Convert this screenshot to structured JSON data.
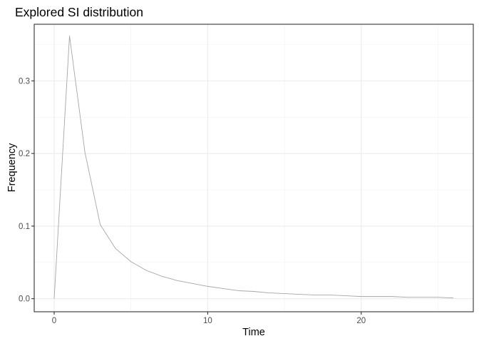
{
  "chart_data": {
    "type": "line",
    "title": "Explored SI distribution",
    "xlabel": "Time",
    "ylabel": "Frequency",
    "xlim": [
      -1.3,
      27.3
    ],
    "ylim": [
      -0.018,
      0.378
    ],
    "x_ticks": [
      0,
      10,
      20
    ],
    "y_ticks": [
      0.0,
      0.1,
      0.2,
      0.3
    ],
    "x_tick_labels": [
      "0",
      "10",
      "20"
    ],
    "y_tick_labels": [
      "0.0",
      "0.1",
      "0.2",
      "0.3"
    ],
    "grid": true,
    "legend": "none",
    "series": [
      {
        "color": "#a6a6a6",
        "x": [
          0,
          1,
          2,
          3,
          4,
          5,
          6,
          7,
          8,
          9,
          10,
          11,
          12,
          13,
          14,
          15,
          16,
          17,
          18,
          19,
          20,
          21,
          22,
          23,
          24,
          25,
          26
        ],
        "y": [
          0.0,
          0.362,
          0.202,
          0.102,
          0.069,
          0.051,
          0.039,
          0.031,
          0.025,
          0.021,
          0.017,
          0.014,
          0.011,
          0.01,
          0.008,
          0.007,
          0.006,
          0.005,
          0.005,
          0.004,
          0.003,
          0.003,
          0.003,
          0.002,
          0.002,
          0.002,
          0.001
        ]
      }
    ]
  }
}
